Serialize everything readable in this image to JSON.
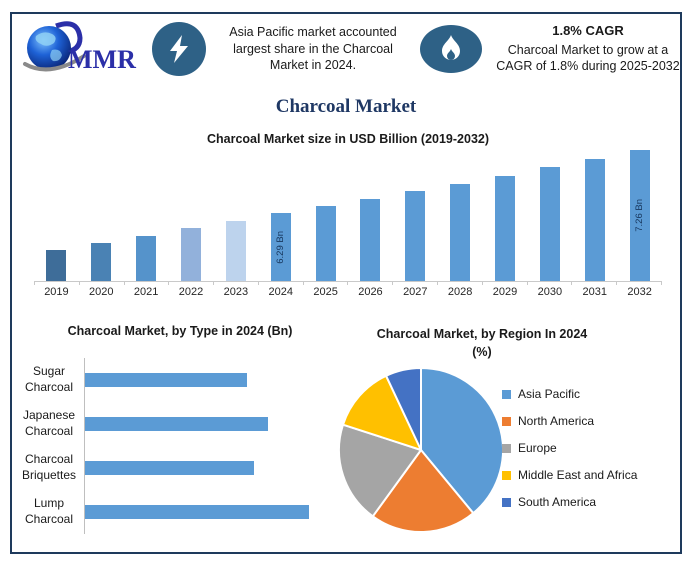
{
  "header": {
    "logo_text": "MMR",
    "highlight_left": "Asia Pacific market accounted largest share in the Charcoal Market in 2024.",
    "cagr_title": "1.8% CAGR",
    "cagr_text": "Charcoal Market to grow at a CAGR of 1.8% during 2025-2032"
  },
  "page_title": "Charcoal Market",
  "colors": {
    "frame_border": "#1E3A5C",
    "title_navy": "#1F3864",
    "icon_circle": "#2E6186",
    "primary_bar_blue": "#5B9BD5",
    "axis_gray": "#C9C9C9"
  },
  "chart_data": [
    {
      "type": "bar",
      "title": "Charcoal Market size in USD Billion (2019-2032)",
      "categories": [
        "2019",
        "2020",
        "2021",
        "2022",
        "2023",
        "2024",
        "2025",
        "2026",
        "2027",
        "2028",
        "2029",
        "2030",
        "2031",
        "2032"
      ],
      "values": [
        5.73,
        5.84,
        5.95,
        6.06,
        6.17,
        6.29,
        6.4,
        6.52,
        6.63,
        6.75,
        6.87,
        7.0,
        7.13,
        7.26
      ],
      "unit": "USD Bn",
      "ylim": [
        5.25,
        7.4
      ],
      "grid": false,
      "data_labels": {
        "2024": "6.29 Bn",
        "2032": "7.26 Bn"
      },
      "bar_colors": [
        "#3E6D99",
        "#4A82B4",
        "#5593CB",
        "#92B1DB",
        "#BDD3ED",
        "#5B9BD5",
        "#5B9BD5",
        "#5B9BD5",
        "#5B9BD5",
        "#5B9BD5",
        "#5B9BD5",
        "#5B9BD5",
        "#5B9BD5",
        "#5B9BD5"
      ]
    },
    {
      "type": "bar",
      "orientation": "horizontal",
      "title": "Charcoal Market, by Type in 2024 (Bn)",
      "categories": [
        "Sugar Charcoal",
        "Japanese Charcoal",
        "Charcoal Briquettes",
        "Lump Charcoal"
      ],
      "values": [
        1.38,
        1.56,
        1.44,
        1.91
      ],
      "unit": "USD Bn (estimated from bar lengths)",
      "bar_color": "#5B9BD5",
      "grid": false
    },
    {
      "type": "pie",
      "title": "Charcoal Market, by Region In 2024 (%)",
      "title_line1": "Charcoal Market, by Region In 2024",
      "title_line2": "(%)",
      "labels": [
        "Asia Pacific",
        "North America",
        "Europe",
        "Middle East and Africa",
        "South America"
      ],
      "values": [
        39,
        21,
        20,
        13,
        7
      ],
      "colors": [
        "#5B9BD5",
        "#ED7D31",
        "#A5A5A5",
        "#FFC000",
        "#4472C4"
      ],
      "legend_position": "right",
      "start_angle_deg": 0,
      "direction": "clockwise"
    }
  ]
}
